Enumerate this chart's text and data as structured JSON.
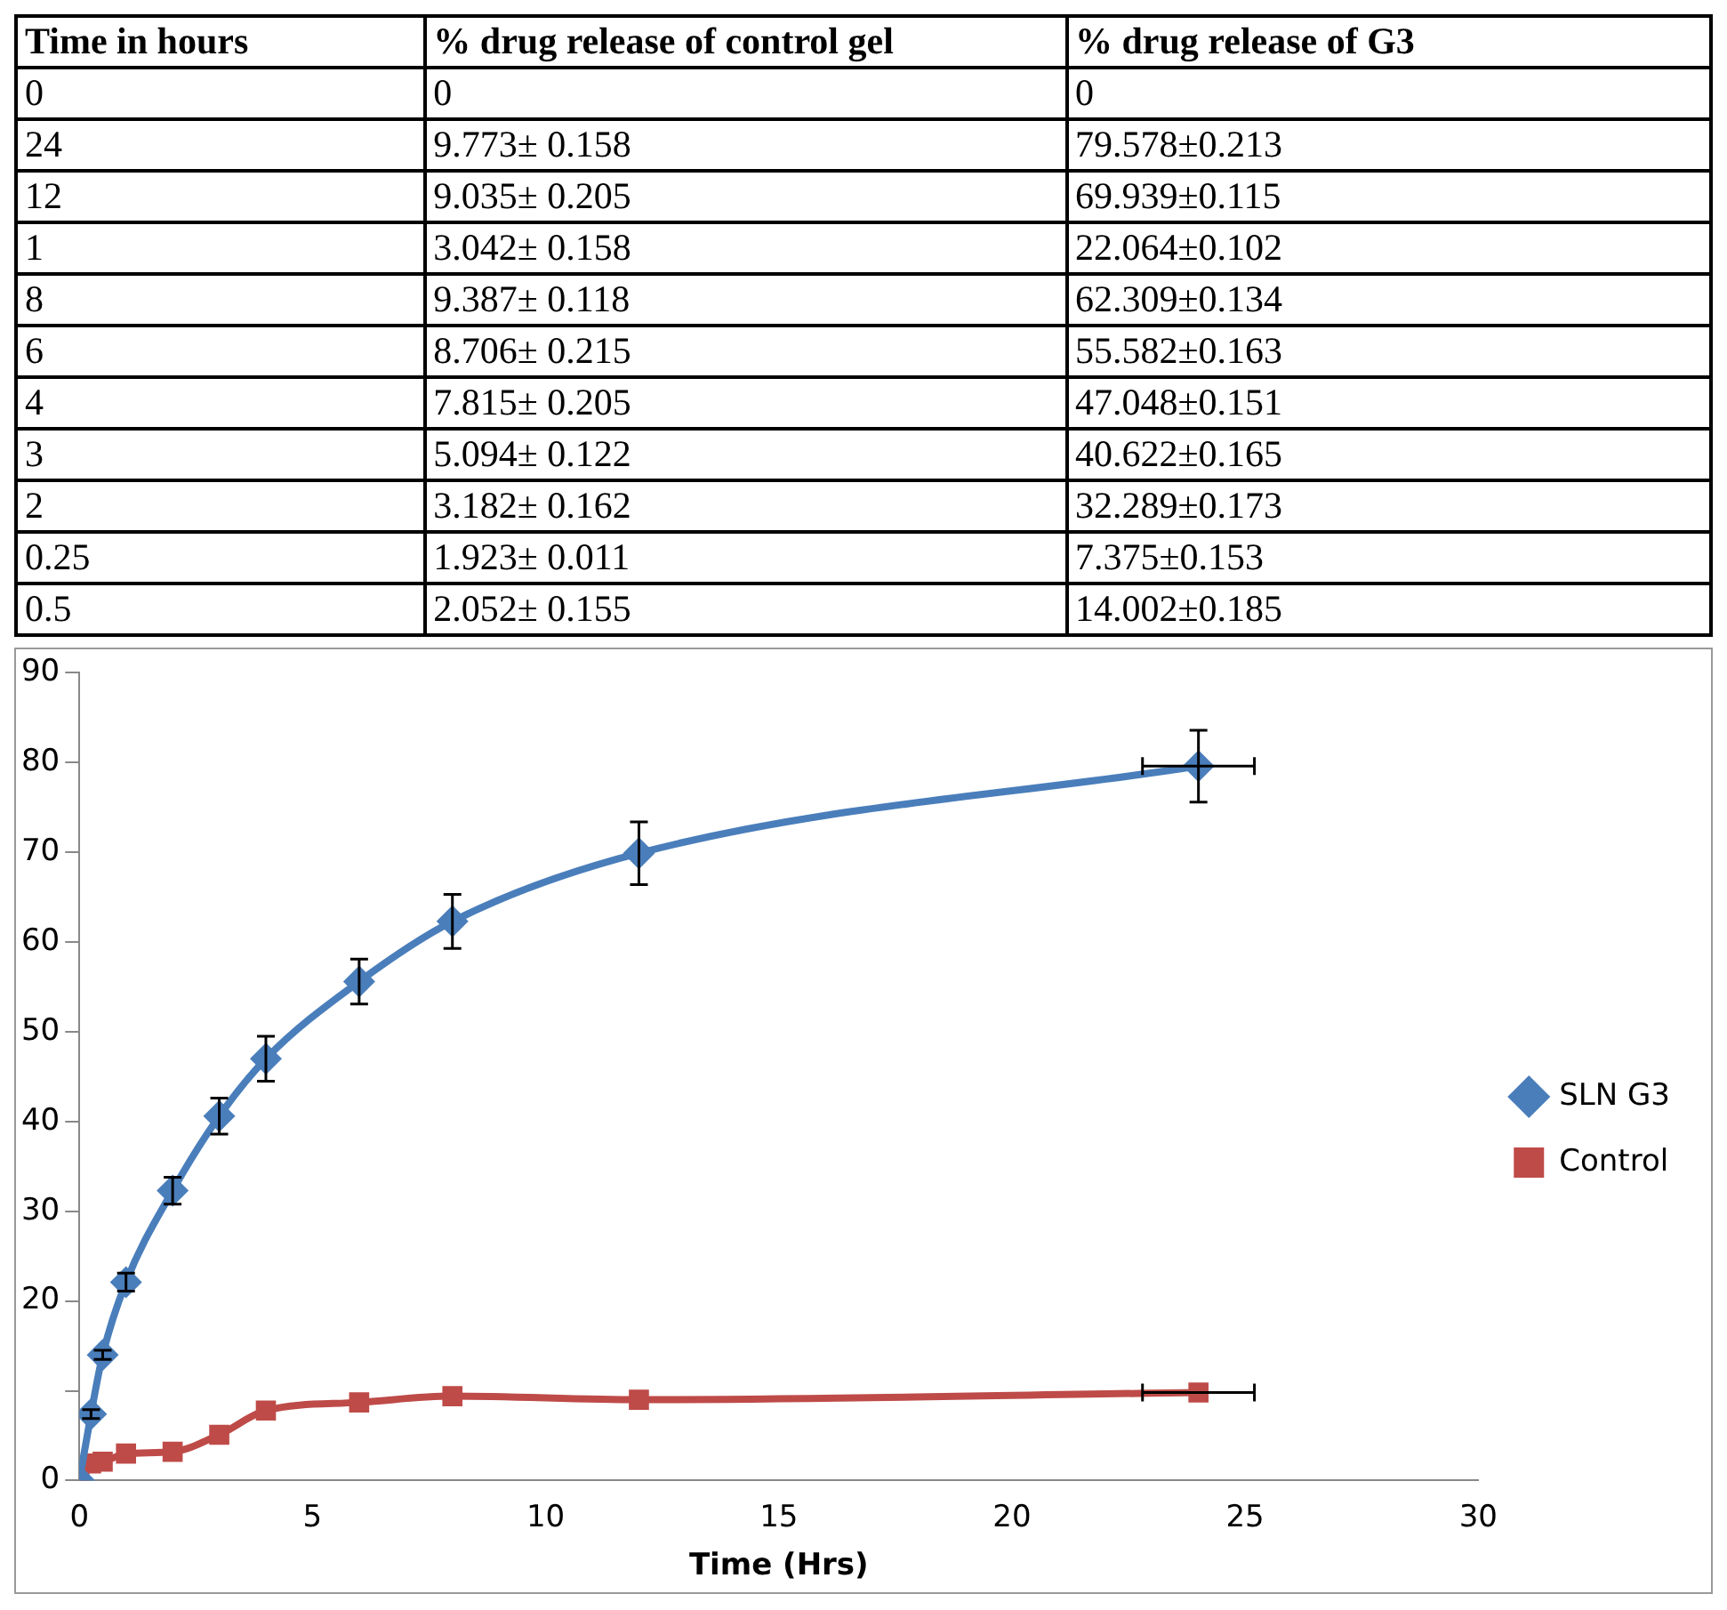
{
  "chart_data": [
    {
      "type": "other",
      "annotations": [
        "Time in hours",
        "% drug release of control gel",
        "% drug release of G3",
        "0",
        "0",
        "0",
        "24",
        "9.773± 0.158",
        "79.578±0.213",
        "12",
        "9.035± 0.205",
        "69.939±0.115",
        "1",
        "3.042± 0.158",
        "22.064±0.102",
        "8",
        "9.387± 0.118",
        "62.309±0.134",
        "6",
        "8.706± 0.215",
        "55.582±0.163",
        "4",
        "7.815± 0.205",
        "47.048±0.151",
        "3",
        "5.094± 0.122",
        "40.622±0.165",
        "2",
        "3.182± 0.162",
        "32.289±0.173",
        "0.25",
        "1.923± 0.011",
        "7.375±0.153",
        "0.5",
        "2.052± 0.155",
        "14.002±0.185"
      ]
    },
    {
      "type": "line",
      "xlabel": "Time (Hrs)",
      "x": [
        0,
        0.25,
        0.5,
        1,
        2,
        3,
        4,
        6,
        8,
        12,
        24
      ],
      "series": [
        {
          "name": "SLN G3",
          "color": "#4a7ebb",
          "marker": "diamond",
          "values": [
            0,
            7.4,
            14,
            22.1,
            32.3,
            40.6,
            47,
            55.6,
            62.3,
            69.9,
            79.6
          ],
          "errors": [
            null,
            0.5,
            0.5,
            1,
            1.5,
            2,
            2.5,
            2.5,
            3,
            3.5,
            4
          ],
          "xerrors": [
            null,
            null,
            null,
            null,
            null,
            null,
            null,
            null,
            null,
            null,
            1.2
          ]
        },
        {
          "name": "Control",
          "color": "#be4b48",
          "marker": "square",
          "values": [
            0,
            1.9,
            2.1,
            3,
            3.2,
            5.1,
            7.8,
            8.7,
            9.4,
            9,
            9.8
          ],
          "xerrors": [
            null,
            null,
            null,
            null,
            null,
            null,
            null,
            null,
            null,
            null,
            1.2
          ]
        }
      ],
      "xlim": [
        0,
        30
      ],
      "xticks": [
        0,
        5,
        10,
        15,
        20,
        25,
        30
      ],
      "ylim": [
        0,
        90
      ],
      "yticks": [
        0,
        {
          "value": 10,
          "label": null
        },
        20,
        30,
        40,
        50,
        60,
        70,
        80,
        90
      ],
      "grid": false,
      "legend": "right",
      "line_style": "solid"
    }
  ]
}
